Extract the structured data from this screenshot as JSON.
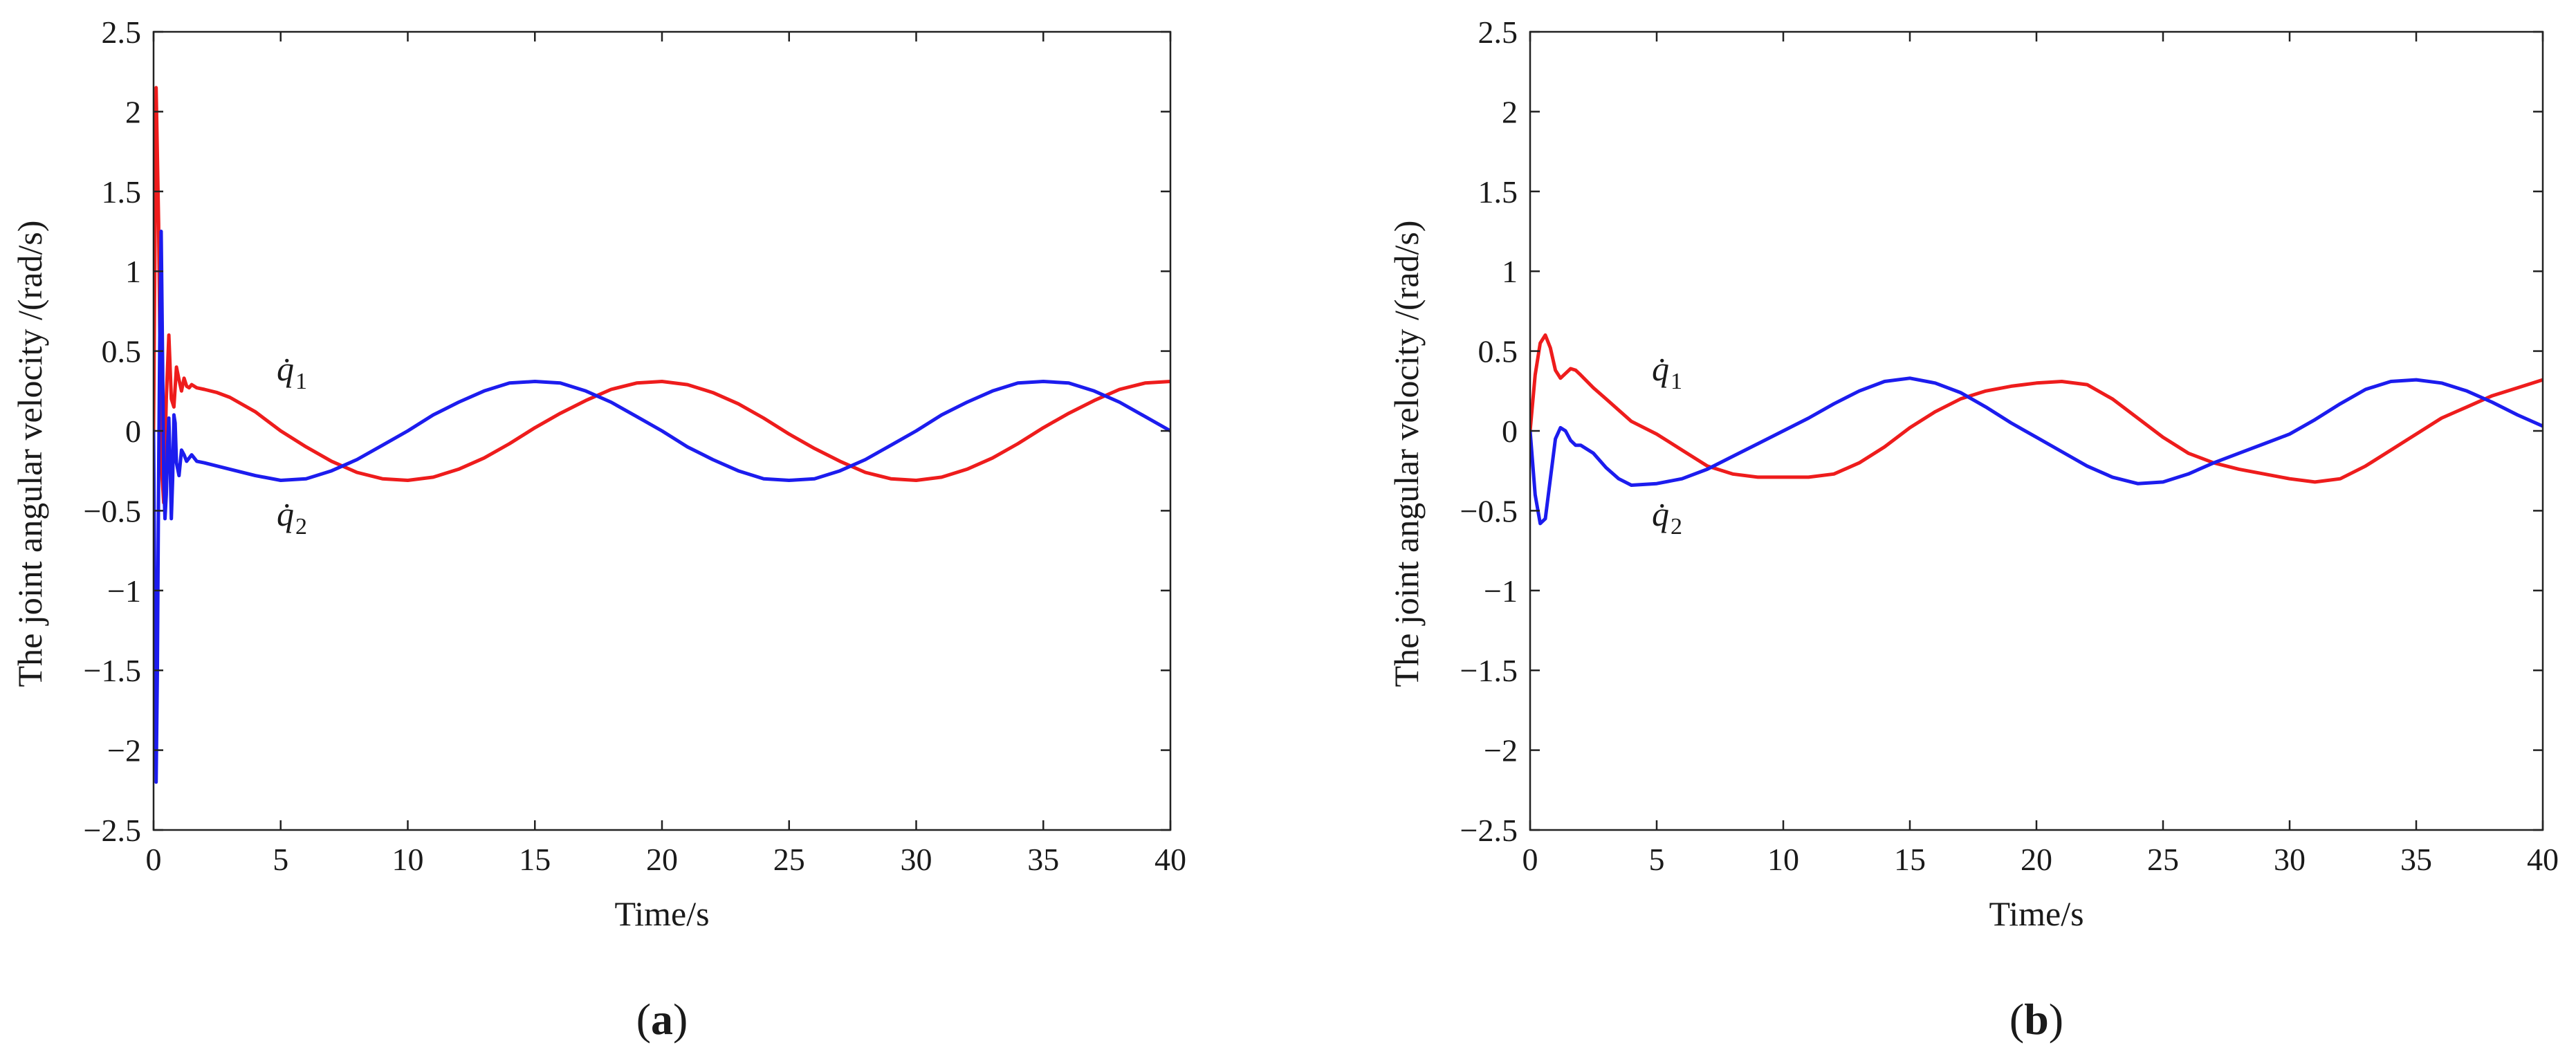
{
  "chart_data": [
    {
      "type": "line",
      "panel_label": "a",
      "xlabel": "Time/s",
      "ylabel": "The joint angular velocity /(rad/s)",
      "xlim": [
        0,
        40
      ],
      "ylim": [
        -2.5,
        2.5
      ],
      "xticks": [
        "0",
        "5",
        "10",
        "15",
        "20",
        "25",
        "30",
        "35",
        "40"
      ],
      "yticks": [
        "2.5",
        "2",
        "1.5",
        "1",
        "0.5",
        "0",
        "−0.5",
        "−1",
        "−1.5",
        "−2",
        "−2.5"
      ],
      "grid": false,
      "colors": {
        "q1": "#ee1c1c",
        "q2": "#1c1cee"
      },
      "series": [
        {
          "name": "q̇1",
          "annotation": {
            "base": "q̇",
            "sub": "1"
          },
          "x": [
            0,
            0.1,
            0.2,
            0.3,
            0.4,
            0.5,
            0.6,
            0.7,
            0.8,
            0.9,
            1.0,
            1.1,
            1.2,
            1.3,
            1.4,
            1.5,
            1.7,
            2.0,
            2.5,
            3,
            4,
            5,
            6,
            7,
            8,
            9,
            10,
            11,
            12,
            13,
            14,
            15,
            16,
            17,
            18,
            19,
            20,
            21,
            22,
            23,
            24,
            25,
            26,
            27,
            28,
            29,
            30,
            31,
            32,
            33,
            34,
            35,
            36,
            37,
            38,
            39,
            40
          ],
          "y": [
            0,
            2.15,
            1.3,
            -0.2,
            -0.45,
            0.2,
            0.6,
            0.2,
            0.15,
            0.4,
            0.32,
            0.25,
            0.33,
            0.28,
            0.27,
            0.29,
            0.27,
            0.26,
            0.24,
            0.21,
            0.12,
            0.0,
            -0.1,
            -0.19,
            -0.26,
            -0.3,
            -0.31,
            -0.29,
            -0.24,
            -0.17,
            -0.08,
            0.02,
            0.11,
            0.19,
            0.26,
            0.3,
            0.31,
            0.29,
            0.24,
            0.17,
            0.08,
            -0.02,
            -0.11,
            -0.19,
            -0.26,
            -0.3,
            -0.31,
            -0.29,
            -0.24,
            -0.17,
            -0.08,
            0.02,
            0.11,
            0.19,
            0.26,
            0.3,
            0.31
          ]
        },
        {
          "name": "q̇2",
          "annotation": {
            "base": "q̇",
            "sub": "2"
          },
          "x": [
            0,
            0.05,
            0.1,
            0.15,
            0.2,
            0.25,
            0.3,
            0.35,
            0.4,
            0.45,
            0.5,
            0.55,
            0.6,
            0.65,
            0.7,
            0.75,
            0.8,
            0.85,
            0.9,
            1.0,
            1.1,
            1.2,
            1.3,
            1.5,
            1.7,
            2.0,
            3,
            4,
            5,
            6,
            7,
            8,
            9,
            10,
            11,
            12,
            13,
            14,
            15,
            16,
            17,
            18,
            19,
            20,
            21,
            22,
            23,
            24,
            25,
            26,
            27,
            28,
            29,
            30,
            31,
            32,
            33,
            34,
            35,
            36,
            37,
            38,
            39,
            40
          ],
          "y": [
            0,
            -1.1,
            -2.2,
            -1.5,
            -0.3,
            0.7,
            1.25,
            0.5,
            -0.3,
            -0.55,
            -0.4,
            -0.1,
            0.08,
            -0.2,
            -0.55,
            -0.3,
            0.1,
            0.05,
            -0.2,
            -0.28,
            -0.12,
            -0.15,
            -0.19,
            -0.15,
            -0.19,
            -0.2,
            -0.24,
            -0.28,
            -0.31,
            -0.3,
            -0.25,
            -0.18,
            -0.09,
            0.0,
            0.1,
            0.18,
            0.25,
            0.3,
            0.31,
            0.3,
            0.25,
            0.18,
            0.09,
            0.0,
            -0.1,
            -0.18,
            -0.25,
            -0.3,
            -0.31,
            -0.3,
            -0.25,
            -0.18,
            -0.09,
            0.0,
            0.1,
            0.18,
            0.25,
            0.3,
            0.31,
            0.3,
            0.25,
            0.18,
            0.09,
            0.0
          ]
        }
      ]
    },
    {
      "type": "line",
      "panel_label": "b",
      "xlabel": "Time/s",
      "ylabel": "The joint angular velocity /(rad/s)",
      "xlim": [
        0,
        40
      ],
      "ylim": [
        -2.5,
        2.5
      ],
      "xticks": [
        "0",
        "5",
        "10",
        "15",
        "20",
        "25",
        "30",
        "35",
        "40"
      ],
      "yticks": [
        "2.5",
        "2",
        "1.5",
        "1",
        "0.5",
        "0",
        "−0.5",
        "−1",
        "−1.5",
        "−2",
        "−2.5"
      ],
      "grid": false,
      "colors": {
        "q1": "#ee1c1c",
        "q2": "#1c1cee"
      },
      "series": [
        {
          "name": "q̇1",
          "annotation": {
            "base": "q̇",
            "sub": "1"
          },
          "x": [
            0,
            0.2,
            0.4,
            0.6,
            0.8,
            1.0,
            1.2,
            1.4,
            1.6,
            1.8,
            2.0,
            2.5,
            3,
            3.5,
            4,
            5,
            6,
            7,
            8,
            9,
            10,
            11,
            12,
            13,
            14,
            15,
            16,
            17,
            18,
            19,
            20,
            21,
            22,
            23,
            24,
            25,
            26,
            27,
            28,
            29,
            30,
            31,
            32,
            33,
            34,
            35,
            36,
            37,
            38,
            39,
            40
          ],
          "y": [
            0,
            0.35,
            0.55,
            0.6,
            0.52,
            0.38,
            0.33,
            0.36,
            0.39,
            0.38,
            0.35,
            0.27,
            0.2,
            0.13,
            0.06,
            -0.02,
            -0.12,
            -0.22,
            -0.27,
            -0.29,
            -0.29,
            -0.29,
            -0.27,
            -0.2,
            -0.1,
            0.02,
            0.12,
            0.2,
            0.25,
            0.28,
            0.3,
            0.31,
            0.29,
            0.2,
            0.08,
            -0.04,
            -0.14,
            -0.2,
            -0.24,
            -0.27,
            -0.3,
            -0.32,
            -0.3,
            -0.22,
            -0.12,
            -0.02,
            0.08,
            0.15,
            0.22,
            0.27,
            0.32
          ]
        },
        {
          "name": "q̇2",
          "annotation": {
            "base": "q̇",
            "sub": "2"
          },
          "x": [
            0,
            0.2,
            0.4,
            0.6,
            0.8,
            1.0,
            1.2,
            1.4,
            1.6,
            1.8,
            2.0,
            2.5,
            3,
            3.5,
            4,
            5,
            6,
            7,
            8,
            9,
            10,
            11,
            12,
            13,
            14,
            15,
            16,
            17,
            18,
            19,
            20,
            21,
            22,
            23,
            24,
            25,
            26,
            27,
            28,
            29,
            30,
            31,
            32,
            33,
            34,
            35,
            36,
            37,
            38,
            39,
            40
          ],
          "y": [
            0,
            -0.4,
            -0.58,
            -0.55,
            -0.3,
            -0.05,
            0.02,
            0.0,
            -0.06,
            -0.09,
            -0.09,
            -0.14,
            -0.23,
            -0.3,
            -0.34,
            -0.33,
            -0.3,
            -0.24,
            -0.16,
            -0.08,
            0.0,
            0.08,
            0.17,
            0.25,
            0.31,
            0.33,
            0.3,
            0.24,
            0.15,
            0.05,
            -0.04,
            -0.13,
            -0.22,
            -0.29,
            -0.33,
            -0.32,
            -0.27,
            -0.2,
            -0.14,
            -0.08,
            -0.02,
            0.07,
            0.17,
            0.26,
            0.31,
            0.32,
            0.3,
            0.25,
            0.18,
            0.1,
            0.03
          ]
        }
      ]
    }
  ]
}
